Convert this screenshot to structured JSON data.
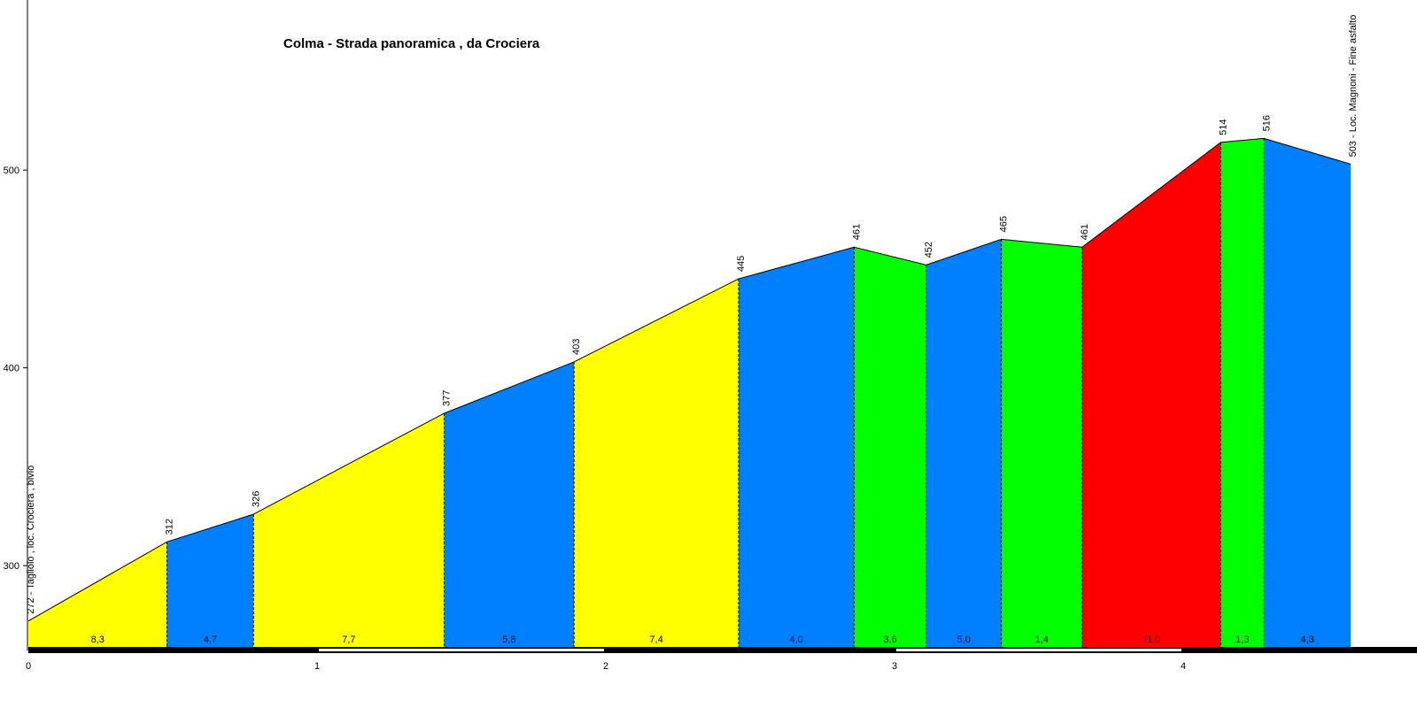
{
  "chart_data": {
    "type": "area",
    "title": "Colma - Strada panoramica , da Crociera",
    "xlabel": "",
    "ylabel": "",
    "xlim": [
      0,
      4.8
    ],
    "ylim": [
      258,
      585
    ],
    "x_ticks": [
      "0",
      "1",
      "2",
      "3",
      "4"
    ],
    "y_ticks": [
      "300",
      "400",
      "500"
    ],
    "points": [
      {
        "x": 0.0,
        "y": 272,
        "label": "272 - Tagliolo , loc. Crociera , bivio"
      },
      {
        "x": 0.48,
        "y": 312,
        "label": "312"
      },
      {
        "x": 0.78,
        "y": 326,
        "label": "326"
      },
      {
        "x": 1.44,
        "y": 377,
        "label": "377"
      },
      {
        "x": 1.89,
        "y": 403,
        "label": "403"
      },
      {
        "x": 2.46,
        "y": 445,
        "label": "445"
      },
      {
        "x": 2.86,
        "y": 461,
        "label": "461"
      },
      {
        "x": 3.11,
        "y": 452,
        "label": "452"
      },
      {
        "x": 3.37,
        "y": 465,
        "label": "465"
      },
      {
        "x": 3.65,
        "y": 461,
        "label": "461"
      },
      {
        "x": 4.13,
        "y": 514,
        "label": "514"
      },
      {
        "x": 4.28,
        "y": 516,
        "label": "516"
      },
      {
        "x": 4.58,
        "y": 503,
        "label": "503 - Loc. Magnoni - Fine asfalto"
      }
    ],
    "segments": [
      {
        "grade": "8,3",
        "color": "#FFFF00"
      },
      {
        "grade": "4,7",
        "color": "#0080FF"
      },
      {
        "grade": "7,7",
        "color": "#FFFF00"
      },
      {
        "grade": "5,8",
        "color": "#0080FF"
      },
      {
        "grade": "7,4",
        "color": "#FFFF00"
      },
      {
        "grade": "4,0",
        "color": "#0080FF"
      },
      {
        "grade": "3,6",
        "color": "#00FF00"
      },
      {
        "grade": "5,0",
        "color": "#0080FF"
      },
      {
        "grade": "1,4",
        "color": "#00FF00"
      },
      {
        "grade": "11,0",
        "color": "#FF0000"
      },
      {
        "grade": "1,3",
        "color": "#00FF00"
      },
      {
        "grade": "4,3",
        "color": "#0080FF"
      }
    ],
    "grid": false,
    "legend": "none"
  }
}
